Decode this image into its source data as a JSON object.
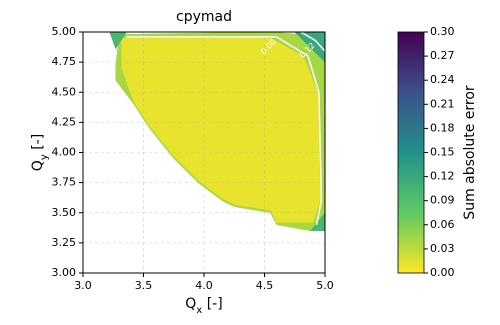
{
  "chart_data": {
    "type": "contour",
    "title": "cpymad",
    "xlabel": [
      "Q",
      "x",
      " [-]"
    ],
    "ylabel": [
      "Q",
      "y",
      " [-]"
    ],
    "xlim": [
      3,
      5
    ],
    "ylim": [
      3,
      5
    ],
    "xticks": [
      {
        "value": 3,
        "label": "3.0"
      },
      3.5,
      {
        "value": 4,
        "label": "4.0"
      },
      4.5,
      {
        "value": 5,
        "label": "5.0"
      }
    ],
    "yticks": [
      {
        "value": 3,
        "label": "3.00"
      },
      3.25,
      {
        "value": 3.5,
        "label": "3.50"
      },
      3.75,
      {
        "value": 4,
        "label": "4.00"
      },
      4.25,
      {
        "value": 4.5,
        "label": "4.50"
      },
      4.75,
      {
        "value": 5,
        "label": "5.00"
      }
    ],
    "grid": true,
    "colormap": [
      "#fde725",
      "#5ec962",
      "#21918c",
      "#3b528b",
      "#440154"
    ],
    "clim": [
      0,
      0.3
    ],
    "colorbar_label": "Sum absolute error",
    "colorbar_ticks": [
      {
        "value": 0,
        "label": "0.00"
      },
      0.03,
      0.06,
      0.09,
      0.12,
      0.15,
      0.18,
      0.21,
      0.24,
      0.27,
      {
        "value": 0.3,
        "label": "0.30"
      }
    ],
    "regions": [
      {
        "level": 0.04,
        "x": [
          3.27,
          3.3,
          4.55,
          4.8,
          5.0,
          5.0,
          4.88,
          4.6,
          4.55,
          4.25,
          4.15,
          3.95,
          3.75,
          3.55,
          3.42,
          3.27
        ],
        "y": [
          4.72,
          4.98,
          5.0,
          4.98,
          4.9,
          3.35,
          3.35,
          3.4,
          3.5,
          3.55,
          3.6,
          3.75,
          3.95,
          4.2,
          4.4,
          4.6
        ]
      },
      {
        "level": 0.01,
        "x": [
          3.32,
          4.55,
          4.82,
          4.94,
          4.96,
          4.9,
          4.6,
          4.55,
          4.25,
          4.15,
          3.95,
          3.75,
          3.55,
          3.42,
          3.32
        ],
        "y": [
          4.95,
          4.95,
          4.8,
          4.5,
          3.6,
          3.42,
          3.42,
          3.52,
          3.57,
          3.62,
          3.77,
          3.97,
          4.22,
          4.42,
          4.7
        ]
      },
      {
        "level": 0.12,
        "x": [
          4.75,
          5.0,
          5.0
        ],
        "y": [
          5.0,
          5.0,
          4.75
        ]
      },
      {
        "level": 0.1,
        "x": [
          3.22,
          3.36,
          3.27
        ],
        "y": [
          5.0,
          5.0,
          4.86
        ]
      },
      {
        "level": 0.1,
        "x": [
          4.88,
          5.0,
          5.0
        ],
        "y": [
          3.35,
          3.35,
          3.5
        ]
      }
    ],
    "contours": [
      {
        "level": 0.06,
        "x": [
          3.36,
          4.6,
          4.86,
          4.95,
          4.97,
          4.93
        ],
        "y": [
          4.96,
          4.96,
          4.8,
          4.5,
          3.6,
          3.4
        ]
      },
      {
        "level": 0.12,
        "x": [
          4.8,
          4.92,
          5.0
        ],
        "y": [
          5.0,
          4.93,
          4.84
        ]
      }
    ]
  }
}
